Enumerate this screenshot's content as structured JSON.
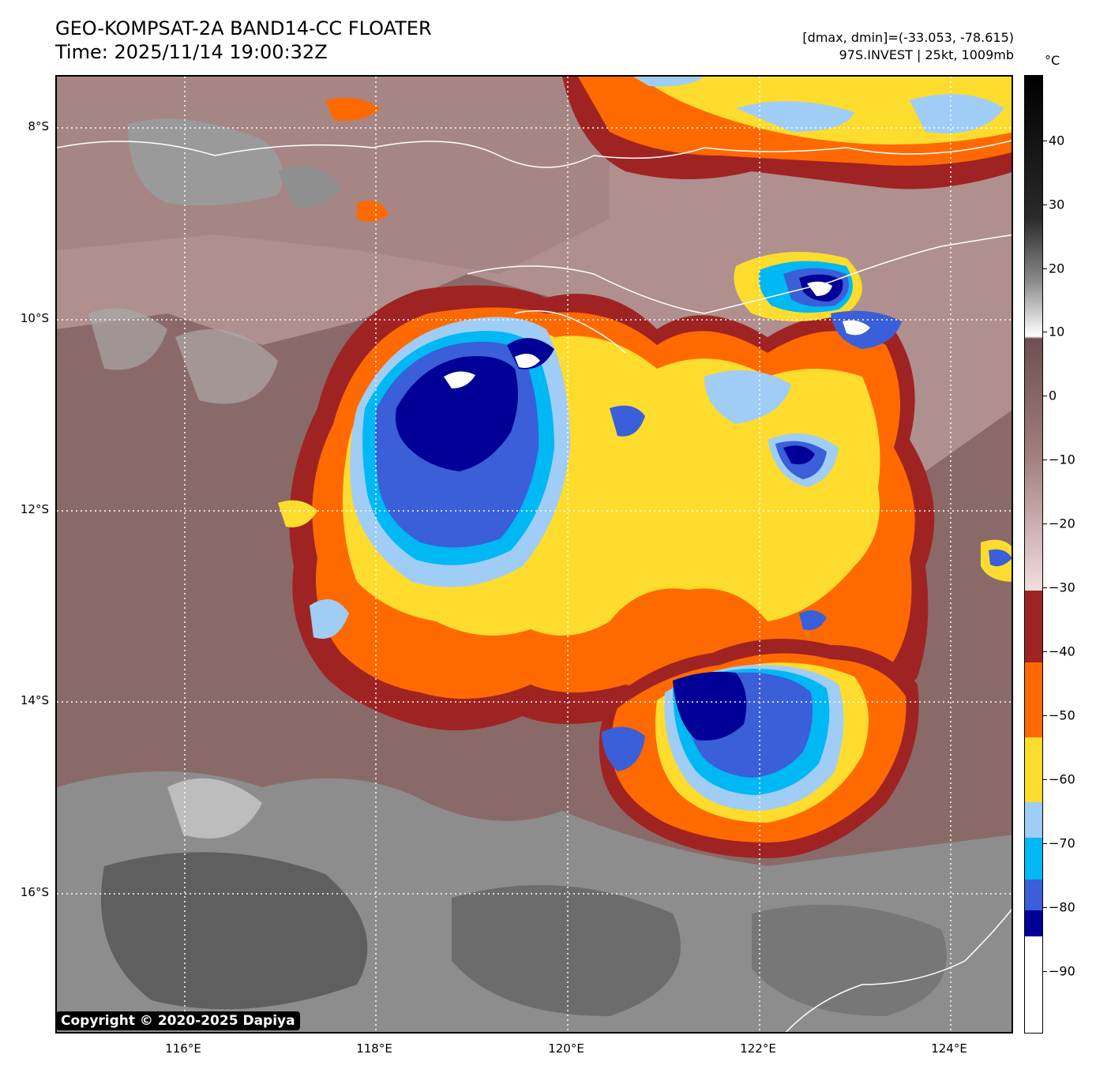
{
  "header": {
    "title": "GEO-KOMPSAT-2A BAND14-CC FLOATER",
    "time": "Time: 2025/11/14 19:00:32Z",
    "range": "[dmax, dmin]=(-33.053, -78.615)",
    "storm": "97S.INVEST | 25kt, 1009mb"
  },
  "map": {
    "lat_labels": [
      "8°S",
      "10°S",
      "12°S",
      "14°S",
      "16°S"
    ],
    "lon_labels": [
      "116°E",
      "118°E",
      "120°E",
      "122°E",
      "124°E"
    ],
    "copyright": "Copyright © 2020-2025 Dapiya"
  },
  "colorbar": {
    "unit": "°C",
    "labels": [
      "40",
      "30",
      "20",
      "10",
      "0",
      "−10",
      "−20",
      "−30",
      "−40",
      "−50",
      "−60",
      "−70",
      "−80",
      "−90"
    ],
    "colors": {
      "minus90": "#ffffff",
      "minus80": "#000096",
      "minus75": "#3a5fd8",
      "minus70": "#00b8f4",
      "minus65": "#9fcdf5",
      "minus60": "#fddc2e",
      "minus50": "#ff6a00",
      "minus40": "#a02323",
      "warm_top": "#f2dede",
      "warm_bottom": "#6e5050"
    }
  }
}
